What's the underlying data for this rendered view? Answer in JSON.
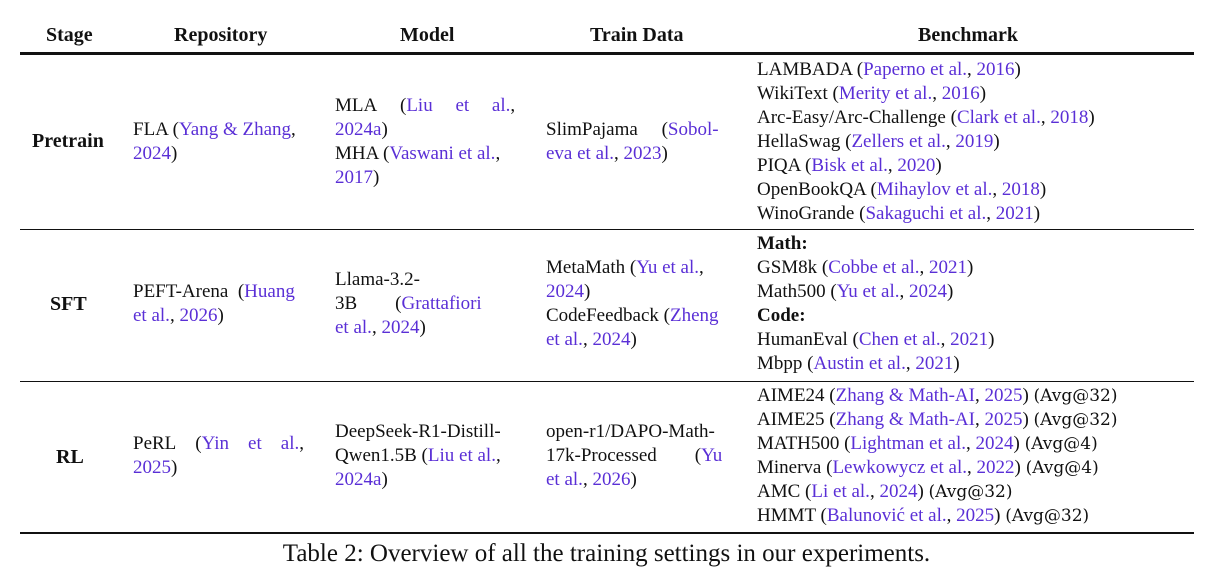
{
  "headers": {
    "stage": "Stage",
    "repository": "Repository",
    "model": "Model",
    "train_data": "Train Data",
    "benchmark": "Benchmark"
  },
  "rows": {
    "pretrain": {
      "stage": "Pretrain",
      "repo_name": "FLA (",
      "repo_cite": "Yang & Zhang",
      "repo_mid": ",",
      "repo_year": "2024",
      "repo_end": ")",
      "model1_name": "MLA (",
      "model1_cite": "Liu et al.",
      "model1_mid": ",",
      "model1_year": "2024a",
      "model1_end": ")",
      "model2_name": "MHA (",
      "model2_cite": "Vaswani et al.",
      "model2_mid": ",",
      "model2_year": "2017",
      "model2_end": ")",
      "data_name": "SlimPajama (",
      "data_cite": "Sobol-eva et al.",
      "data_mid": ",",
      "data_year": "2023",
      "data_end": ")",
      "bench": [
        {
          "name": "LAMBADA (",
          "cite": "Paperno et al.",
          "year": "2016"
        },
        {
          "name": "WikiText (",
          "cite": "Merity et al.",
          "year": "2016"
        },
        {
          "name": "Arc-Easy/Arc-Challenge (",
          "cite": "Clark et al.",
          "year": "2018"
        },
        {
          "name": "HellaSwag (",
          "cite": "Zellers et al.",
          "year": "2019"
        },
        {
          "name": "PIQA (",
          "cite": "Bisk et al.",
          "year": "2020"
        },
        {
          "name": "OpenBookQA (",
          "cite": "Mihaylov et al.",
          "year": "2018"
        },
        {
          "name": "WinoGrande (",
          "cite": "Sakaguchi et al.",
          "year": "2021"
        }
      ]
    },
    "sft": {
      "stage": "SFT",
      "repo_name": "PEFT-Arena (",
      "repo_cite": "Huang et al.",
      "repo_mid": ",",
      "repo_year": "2026",
      "repo_end": ")",
      "model_name": "Llama-3.2-3B (",
      "model_cite": "Grattafiori et al.",
      "model_mid": ",",
      "model_year": "2024",
      "model_end": ")",
      "data1_name": "MetaMath (",
      "data1_cite": "Yu et al.",
      "data1_mid": ",",
      "data1_year": "2024",
      "data1_end": ")",
      "data2_name": "CodeFeedback (",
      "data2_cite": "Zheng et al.",
      "data2_mid": ",",
      "data2_year": "2024",
      "data2_end": ")",
      "math_heading": "Math:",
      "math": [
        {
          "name": "GSM8k (",
          "cite": "Cobbe et al.",
          "year": "2021"
        },
        {
          "name": "Math500 (",
          "cite": "Yu et al.",
          "year": "2024"
        }
      ],
      "code_heading": "Code:",
      "code": [
        {
          "name": "HumanEval (",
          "cite": "Chen et al.",
          "year": "2021"
        },
        {
          "name": "Mbpp (",
          "cite": "Austin et al.",
          "year": "2021"
        }
      ]
    },
    "rl": {
      "stage": "RL",
      "repo_name": "PeRL (",
      "repo_cite": "Yin et al.",
      "repo_mid": ",",
      "repo_year": "2025",
      "repo_end": ")",
      "model_name": "DeepSeek-R1-Distill-Qwen1.5B (",
      "model_cite": "Liu et al.",
      "model_mid": ",",
      "model_year": "2024a",
      "model_end": ")",
      "data_name": "open-r1/DAPO-Math-17k-Processed (",
      "data_cite": "Yu et al.",
      "data_mid": ",",
      "data_year": "2026",
      "data_end": ")",
      "bench": [
        {
          "name": "AIME24 (",
          "cite": "Zhang & Math-AI",
          "year": "2025",
          "metric": "(Avg@32)"
        },
        {
          "name": "AIME25 (",
          "cite": "Zhang & Math-AI",
          "year": "2025",
          "metric": "(Avg@32)"
        },
        {
          "name": "MATH500 (",
          "cite": "Lightman et al.",
          "year": "2024",
          "metric": "(Avg@4)"
        },
        {
          "name": "Minerva (",
          "cite": "Lewkowycz et al.",
          "year": "2022",
          "metric": "(Avg@4)"
        },
        {
          "name": "AMC (",
          "cite": "Li et al.",
          "year": "2024",
          "metric": "(Avg@32)"
        },
        {
          "name": "HMMT (",
          "cite": "Balunović et al.",
          "year": "2025",
          "metric": "(Avg@32)"
        }
      ]
    }
  },
  "caption": "Table 2: Overview of all the training settings in our experiments."
}
